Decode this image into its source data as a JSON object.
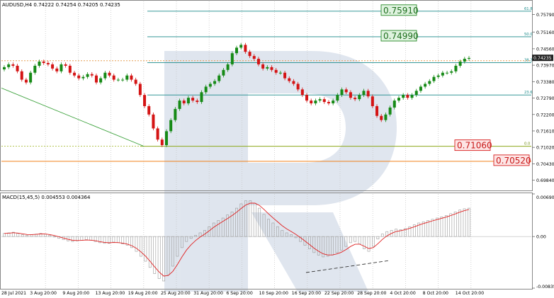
{
  "chart_data": [
    {
      "type": "candlestick",
      "title": "AUDUSD,H4  0.74222 0.74254 0.74205 0.74235",
      "y_ticks": [
        "0.75790",
        "0.75160",
        "0.74560",
        "0.73970",
        "0.73380",
        "0.72790",
        "0.72200",
        "0.71610",
        "0.71020",
        "0.70430",
        "0.69840"
      ],
      "ylim": [
        0.695,
        0.7626
      ],
      "last_price": "0.74235",
      "grid": "dotted vertical",
      "fibo_levels": [
        {
          "label": "61.8",
          "value": 0.7591
        },
        {
          "label": "50.0",
          "value": 0.7499
        },
        {
          "label": "38.2",
          "value": 0.7406
        },
        {
          "label": "23.6",
          "value": 0.729
        },
        {
          "label": "0.0",
          "value": 0.7106
        }
      ],
      "price_labels": [
        {
          "text": "0.75910",
          "value": 0.7591,
          "color": "green"
        },
        {
          "text": "0.74990",
          "value": 0.7499,
          "color": "green"
        },
        {
          "text": "0.71060",
          "value": 0.7106,
          "color": "red"
        },
        {
          "text": "0.70520",
          "value": 0.7052,
          "color": "red"
        }
      ],
      "support_line": 0.7052,
      "pivot_close_series": [
        0.739,
        0.74,
        0.7395,
        0.7375,
        0.7345,
        0.7335,
        0.737,
        0.7395,
        0.741,
        0.7405,
        0.74,
        0.7385,
        0.7375,
        0.74,
        0.7395,
        0.737,
        0.736,
        0.735,
        0.7355,
        0.7365,
        0.736,
        0.7335,
        0.735,
        0.737,
        0.736,
        0.7345,
        0.7345,
        0.7345,
        0.736,
        0.7345,
        0.733,
        0.729,
        0.725,
        0.722,
        0.717,
        0.713,
        0.711,
        0.716,
        0.72,
        0.724,
        0.727,
        0.726,
        0.728,
        0.727,
        0.7265,
        0.73,
        0.732,
        0.733,
        0.734,
        0.736,
        0.738,
        0.74,
        0.744,
        0.746,
        0.747,
        0.7445,
        0.743,
        0.742,
        0.74,
        0.7385,
        0.739,
        0.738,
        0.737,
        0.737,
        0.735,
        0.734,
        0.733,
        0.731,
        0.729,
        0.727,
        0.726,
        0.727,
        0.7275,
        0.7265,
        0.726,
        0.727,
        0.729,
        0.731,
        0.73,
        0.728,
        0.7275,
        0.729,
        0.7305,
        0.7285,
        0.725,
        0.7215,
        0.72,
        0.722,
        0.7245,
        0.727,
        0.728,
        0.729,
        0.728,
        0.729,
        0.7305,
        0.732,
        0.733,
        0.734,
        0.7355,
        0.736,
        0.737,
        0.737,
        0.7375,
        0.7395,
        0.741,
        0.742,
        0.7423
      ]
    },
    {
      "type": "bar",
      "title": "MACD(15,45,5)  0.004553 0.004364",
      "y_ticks": [
        "0.006902",
        "0.00",
        "-0.008354"
      ],
      "ylim": [
        -0.00835,
        0.0069
      ],
      "histogram": [
        0.0005,
        0.0006,
        0.0007,
        0.0005,
        0.0003,
        0.0002,
        0.0003,
        0.0004,
        0.0005,
        0.0004,
        0.0002,
        0.0,
        -0.0003,
        -0.0005,
        -0.0007,
        -0.0008,
        -0.0007,
        -0.0006,
        -0.0005,
        -0.0006,
        -0.0008,
        -0.001,
        -0.0011,
        -0.0011,
        -0.0009,
        -0.001,
        -0.0012,
        -0.0014,
        -0.0018,
        -0.0024,
        -0.0032,
        -0.004,
        -0.005,
        -0.006,
        -0.0068,
        -0.0072,
        -0.0062,
        -0.0048,
        -0.0032,
        -0.0018,
        -0.0008,
        -0.0003,
        0.0002,
        0.0006,
        0.001,
        0.0016,
        0.0022,
        0.0026,
        0.003,
        0.0035,
        0.004,
        0.0046,
        0.0053,
        0.0058,
        0.0058,
        0.0054,
        0.0046,
        0.0036,
        0.0028,
        0.0022,
        0.0016,
        0.001,
        0.0006,
        0.0003,
        -0.0002,
        -0.0008,
        -0.0014,
        -0.002,
        -0.0026,
        -0.003,
        -0.0033,
        -0.0032,
        -0.003,
        -0.0026,
        -0.0022,
        -0.0016,
        -0.001,
        -0.0008,
        -0.0012,
        -0.002,
        -0.0024,
        -0.0016,
        -0.0004,
        0.0004,
        0.0008,
        0.001,
        0.0012,
        0.0011,
        0.0013,
        0.0016,
        0.0019,
        0.0022,
        0.0024,
        0.0026,
        0.0028,
        0.003,
        0.0032,
        0.0034,
        0.0037,
        0.004,
        0.0043,
        0.0045,
        0.0046
      ]
    }
  ],
  "x_ticks": [
    "28 Jul 2021",
    "3 Aug 20:00",
    "9 Aug 20:00",
    "13 Aug 20:00",
    "19 Aug 20:00",
    "25 Aug 20:00",
    "31 Aug 20:00",
    "6 Sep 20:00",
    "10 Sep 20:00",
    "16 Sep 20:00",
    "22 Sep 20:00",
    "28 Sep 20:00",
    "4 Oct 20:00",
    "8 Oct 20:00",
    "14 Oct 20:00"
  ],
  "colors": {
    "up": "#168a16",
    "down": "#d41414",
    "fibo": "#1a8a8a",
    "support": "#f0801a",
    "trend": "#3aa13a",
    "signal": "#e02020",
    "macd_bar": "#9a9a9a",
    "watermark": "#cfd8e6"
  }
}
